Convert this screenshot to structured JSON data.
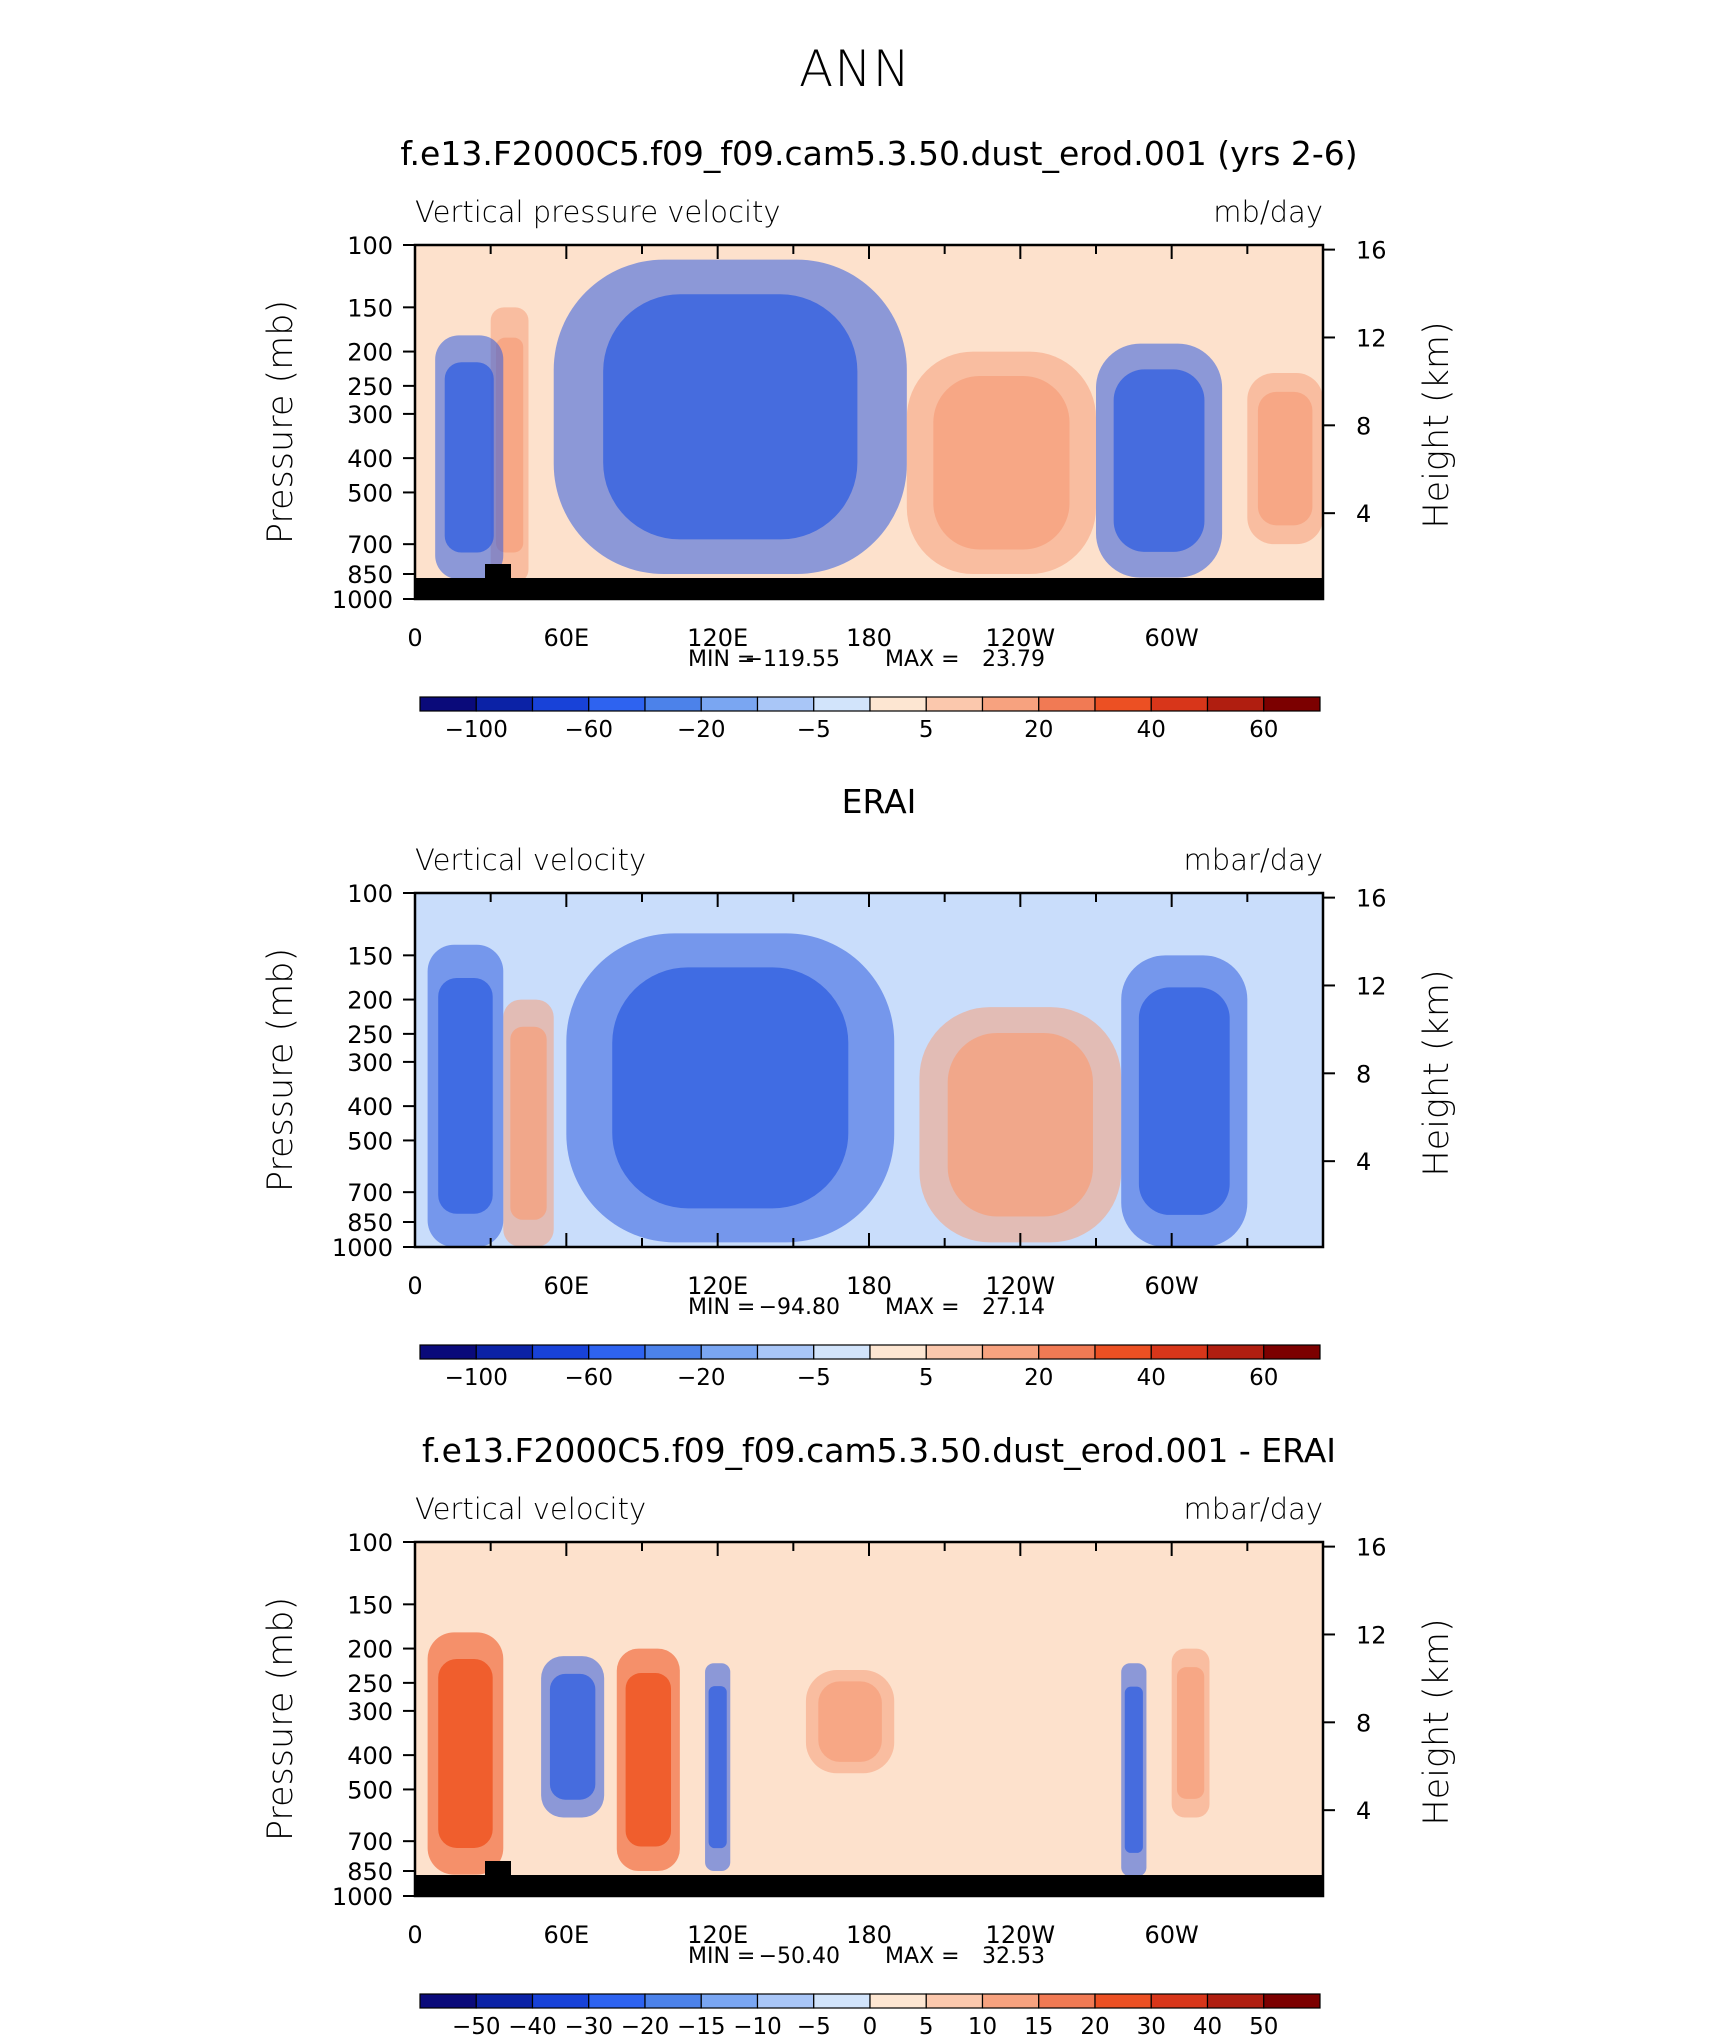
{
  "figure_title": "ANN",
  "colors": {
    "blue_dark": "#08006b",
    "blue": "#2f5de0",
    "blue_light": "#c9ddfb",
    "peach": "#fde1cc",
    "orange": "#f6a07c",
    "red_orange": "#ee4e1a",
    "red_dark": "#7c0000",
    "land": "#000000"
  },
  "palette": [
    "#0a0a7a",
    "#0b22a6",
    "#1842d8",
    "#2e63f0",
    "#4c82ea",
    "#7aa6f2",
    "#a9c6f7",
    "#d2e4fb",
    "#fde6d2",
    "#fbc8ad",
    "#f7a27f",
    "#f17a54",
    "#ec5023",
    "#d8361a",
    "#b01e10",
    "#7c0000"
  ],
  "chart_data": [
    {
      "type": "heatmap",
      "title": "f.e13.F2000C5.f09_f09.cam5.3.50.dust_erod.001 (yrs 2-6)",
      "left_string": "Vertical pressure velocity",
      "right_string": "mb/day",
      "xlabel": "",
      "ylabel": "Pressure (mb)",
      "y2label": "Height (km)",
      "x_ticks": [
        "0",
        "60E",
        "120E",
        "180",
        "120W",
        "60W"
      ],
      "y_ticks": [
        "100",
        "150",
        "200",
        "250",
        "300",
        "400",
        "500",
        "700",
        "850",
        "1000"
      ],
      "y2_ticks": [
        "16",
        "12",
        "8",
        "4"
      ],
      "ylim": [
        1000,
        100
      ],
      "stats": {
        "label_min": "MIN =",
        "min": "−119.55",
        "label_max": "MAX =",
        "max": "23.79"
      },
      "colorbar_labels": [
        "−100",
        "−60",
        "−20",
        "−5",
        "5",
        "20",
        "40",
        "60"
      ],
      "levels": [
        -100,
        -80,
        -60,
        -40,
        -20,
        -10,
        -5,
        0,
        5,
        10,
        20,
        30,
        40,
        50,
        60
      ],
      "regions": [
        {
          "lon": [
            30,
            45
          ],
          "p_top": 150,
          "p_bot": 900,
          "level": "orange"
        },
        {
          "lon": [
            8,
            35
          ],
          "p_top": 180,
          "p_bot": 880,
          "level": "blue"
        },
        {
          "lon": [
            55,
            195
          ],
          "p_top": 110,
          "p_bot": 850,
          "level": "blue"
        },
        {
          "lon": [
            195,
            270
          ],
          "p_top": 200,
          "p_bot": 850,
          "level": "orange"
        },
        {
          "lon": [
            270,
            320
          ],
          "p_top": 190,
          "p_bot": 870,
          "level": "blue"
        },
        {
          "lon": [
            330,
            360
          ],
          "p_top": 230,
          "p_bot": 700,
          "level": "orange"
        }
      ]
    },
    {
      "type": "heatmap",
      "title": "ERAI",
      "left_string": "Vertical velocity",
      "right_string": "mbar/day",
      "xlabel": "",
      "ylabel": "Pressure (mb)",
      "y2label": "Height (km)",
      "x_ticks": [
        "0",
        "60E",
        "120E",
        "180",
        "120W",
        "60W"
      ],
      "y_ticks": [
        "100",
        "150",
        "200",
        "250",
        "300",
        "400",
        "500",
        "700",
        "850",
        "1000"
      ],
      "y2_ticks": [
        "16",
        "12",
        "8",
        "4"
      ],
      "ylim": [
        1000,
        100
      ],
      "stats": {
        "label_min": "MIN =",
        "min": "−94.80",
        "label_max": "MAX =",
        "max": "27.14"
      },
      "colorbar_labels": [
        "−100",
        "−60",
        "−20",
        "−5",
        "5",
        "20",
        "40",
        "60"
      ],
      "levels": [
        -100,
        -80,
        -60,
        -40,
        -20,
        -10,
        -5,
        0,
        5,
        10,
        20,
        30,
        40,
        50,
        60
      ],
      "regions": [
        {
          "lon": [
            35,
            55
          ],
          "p_top": 200,
          "p_bot": 1000,
          "level": "orange"
        },
        {
          "lon": [
            5,
            35
          ],
          "p_top": 140,
          "p_bot": 1000,
          "level": "blue"
        },
        {
          "lon": [
            60,
            190
          ],
          "p_top": 130,
          "p_bot": 970,
          "level": "blue"
        },
        {
          "lon": [
            200,
            280
          ],
          "p_top": 210,
          "p_bot": 970,
          "level": "orange"
        },
        {
          "lon": [
            280,
            330
          ],
          "p_top": 150,
          "p_bot": 1000,
          "level": "blue"
        }
      ]
    },
    {
      "type": "heatmap",
      "title": "f.e13.F2000C5.f09_f09.cam5.3.50.dust_erod.001 - ERAI",
      "left_string": "Vertical velocity",
      "right_string": "mbar/day",
      "xlabel": "",
      "ylabel": "Pressure (mb)",
      "y2label": "Height (km)",
      "x_ticks": [
        "0",
        "60E",
        "120E",
        "180",
        "120W",
        "60W"
      ],
      "y_ticks": [
        "100",
        "150",
        "200",
        "250",
        "300",
        "400",
        "500",
        "700",
        "850",
        "1000"
      ],
      "y2_ticks": [
        "16",
        "12",
        "8",
        "4"
      ],
      "ylim": [
        1000,
        100
      ],
      "stats": {
        "label_min": "MIN =",
        "min": "−50.40",
        "label_max": "MAX =",
        "max": "32.53"
      },
      "colorbar_labels": [
        "−50",
        "−40",
        "−30",
        "−20",
        "−15",
        "−10",
        "−5",
        "0",
        "5",
        "10",
        "15",
        "20",
        "30",
        "40",
        "50"
      ],
      "levels": [
        -50,
        -40,
        -30,
        -20,
        -15,
        -10,
        -5,
        0,
        5,
        10,
        15,
        20,
        30,
        40,
        50
      ],
      "regions": [
        {
          "lon": [
            5,
            35
          ],
          "p_top": 180,
          "p_bot": 870,
          "level": "red_orange"
        },
        {
          "lon": [
            50,
            75
          ],
          "p_top": 210,
          "p_bot": 600,
          "level": "blue"
        },
        {
          "lon": [
            80,
            105
          ],
          "p_top": 200,
          "p_bot": 850,
          "level": "red_orange"
        },
        {
          "lon": [
            115,
            125
          ],
          "p_top": 220,
          "p_bot": 850,
          "level": "blue"
        },
        {
          "lon": [
            155,
            190
          ],
          "p_top": 230,
          "p_bot": 450,
          "level": "orange"
        },
        {
          "lon": [
            280,
            290
          ],
          "p_top": 220,
          "p_bot": 880,
          "level": "blue"
        },
        {
          "lon": [
            300,
            315
          ],
          "p_top": 200,
          "p_bot": 600,
          "level": "orange"
        }
      ]
    }
  ]
}
